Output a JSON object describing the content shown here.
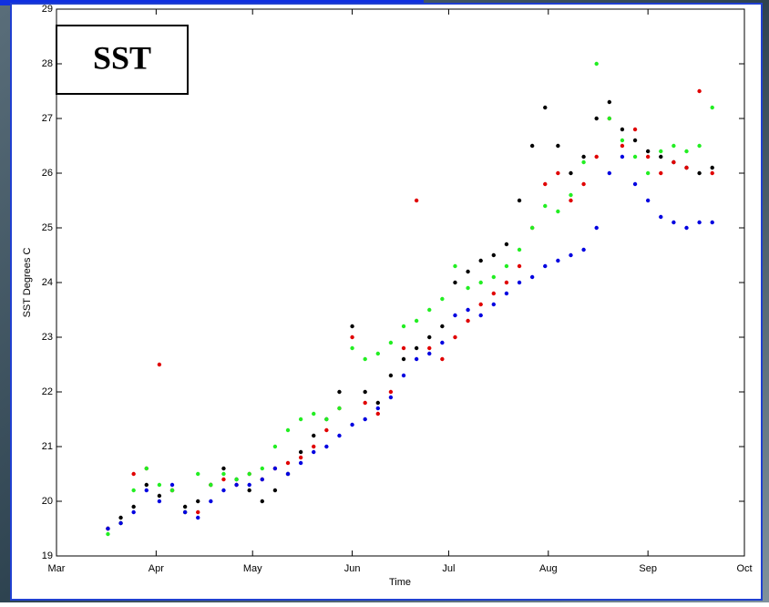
{
  "chart_data": {
    "type": "scatter",
    "label": "SST",
    "xlabel": "Time",
    "ylabel": "SST Degrees C",
    "xlim": [
      60,
      274
    ],
    "xticks": [
      {
        "value": 60,
        "label": "Mar"
      },
      {
        "value": 91,
        "label": "Apr"
      },
      {
        "value": 121,
        "label": "May"
      },
      {
        "value": 152,
        "label": "Jun"
      },
      {
        "value": 182,
        "label": "Jul"
      },
      {
        "value": 213,
        "label": "Aug"
      },
      {
        "value": 244,
        "label": "Sep"
      },
      {
        "value": 274,
        "label": "Oct"
      }
    ],
    "ylim": [
      19,
      29
    ],
    "yticks": [
      19,
      20,
      21,
      22,
      23,
      24,
      25,
      26,
      27,
      28,
      29
    ],
    "x": [
      76,
      80,
      84,
      88,
      92,
      96,
      100,
      104,
      108,
      112,
      116,
      120,
      124,
      128,
      132,
      136,
      140,
      144,
      148,
      152,
      156,
      160,
      164,
      168,
      172,
      176,
      180,
      184,
      188,
      192,
      196,
      200,
      204,
      208,
      212,
      216,
      220,
      224,
      228,
      232,
      236,
      240,
      244,
      248,
      252,
      256,
      260,
      264
    ],
    "series": [
      {
        "color": "#000000",
        "values": [
          19.5,
          19.7,
          19.9,
          20.3,
          20.1,
          20.2,
          19.9,
          20.0,
          20.3,
          20.6,
          20.4,
          20.2,
          20.0,
          20.2,
          20.5,
          20.9,
          21.2,
          21.5,
          22.0,
          23.2,
          22.0,
          21.8,
          22.3,
          22.6,
          22.8,
          23.0,
          23.2,
          24.0,
          24.2,
          24.4,
          24.5,
          24.7,
          25.5,
          26.5,
          27.2,
          26.5,
          26.0,
          26.3,
          27.0,
          27.3,
          26.8,
          26.6,
          26.4,
          26.3,
          26.2,
          26.1,
          26.0,
          26.1
        ]
      },
      {
        "color": "#e00000",
        "values": [
          19.5,
          19.6,
          20.5,
          20.6,
          22.5,
          20.2,
          19.8,
          19.8,
          20.3,
          20.4,
          20.3,
          20.5,
          20.4,
          20.6,
          20.7,
          20.8,
          21.0,
          21.3,
          21.7,
          23.0,
          21.8,
          21.6,
          22.0,
          22.8,
          25.5,
          22.8,
          22.6,
          23.0,
          23.3,
          23.6,
          23.8,
          24.0,
          24.3,
          25.0,
          25.8,
          26.0,
          25.5,
          25.8,
          26.3,
          27.0,
          26.5,
          26.8,
          26.3,
          26.0,
          26.2,
          26.1,
          27.5,
          26.0
        ]
      },
      {
        "color": "#22ee22",
        "values": [
          19.4,
          19.6,
          20.2,
          20.6,
          20.3,
          20.2,
          19.8,
          20.5,
          20.3,
          20.5,
          20.4,
          20.5,
          20.6,
          21.0,
          21.3,
          21.5,
          21.6,
          21.5,
          21.7,
          22.8,
          22.6,
          22.7,
          22.9,
          23.2,
          23.3,
          23.5,
          23.7,
          24.3,
          23.9,
          24.0,
          24.1,
          24.3,
          24.6,
          25.0,
          25.4,
          25.3,
          25.6,
          26.2,
          28.0,
          27.0,
          26.6,
          26.3,
          26.0,
          26.4,
          26.5,
          26.4,
          26.5,
          27.2
        ]
      },
      {
        "color": "#0000e0",
        "values": [
          19.5,
          19.6,
          19.8,
          20.2,
          20.0,
          20.3,
          19.8,
          19.7,
          20.0,
          20.2,
          20.3,
          20.3,
          20.4,
          20.6,
          20.5,
          20.7,
          20.9,
          21.0,
          21.2,
          21.4,
          21.5,
          21.7,
          21.9,
          22.3,
          22.6,
          22.7,
          22.9,
          23.4,
          23.5,
          23.4,
          23.6,
          23.8,
          24.0,
          24.1,
          24.3,
          24.4,
          24.5,
          24.6,
          25.0,
          26.0,
          26.3,
          25.8,
          25.5,
          25.2,
          25.1,
          25.0,
          25.1,
          25.1
        ]
      }
    ]
  }
}
